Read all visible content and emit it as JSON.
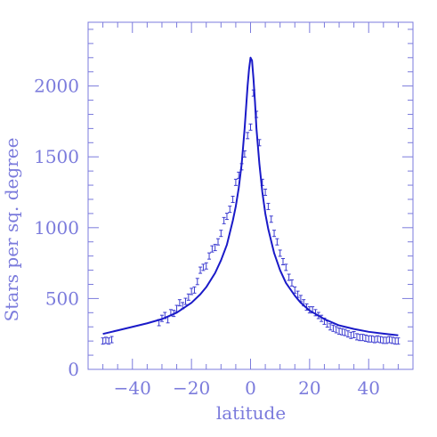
{
  "colors": {
    "axis": "#7b7bdc",
    "data": "#3b3bd0",
    "model": "#1a1ac8",
    "background": "#ffffff"
  },
  "chart_data": {
    "type": "scatter",
    "title": "",
    "xlabel": "latitude",
    "ylabel": "Stars per sq. degree",
    "xlim": [
      -55,
      55
    ],
    "ylim": [
      0,
      2450
    ],
    "x_ticks": [
      -40,
      -20,
      0,
      20,
      40
    ],
    "x_tick_labels": [
      "−40",
      "−20",
      "0",
      "20",
      "40"
    ],
    "y_ticks": [
      0,
      500,
      1000,
      1500,
      2000
    ],
    "y_tick_labels": [
      "0",
      "500",
      "1000",
      "1500",
      "2000"
    ],
    "grid": false,
    "legend": "none",
    "series": [
      {
        "kind": "points-with-error-bars",
        "x": [
          -50,
          -49,
          -48,
          -47,
          -31,
          -30,
          -29,
          -28,
          -27,
          -26,
          -25,
          -24,
          -23,
          -22,
          -21,
          -20,
          -19,
          -18,
          -17,
          -16,
          -15,
          -14,
          -13,
          -12,
          -11,
          -10,
          -9,
          -8,
          -7,
          -6,
          -5,
          -4,
          -3,
          -2,
          -1,
          0,
          1,
          2,
          3,
          4,
          5,
          6,
          7,
          8,
          9,
          10,
          11,
          12,
          13,
          14,
          15,
          16,
          17,
          18,
          19,
          20,
          21,
          22,
          23,
          24,
          25,
          26,
          27,
          28,
          29,
          30,
          31,
          32,
          33,
          34,
          35,
          36,
          37,
          38,
          39,
          40,
          41,
          42,
          43,
          44,
          45,
          46,
          47,
          48,
          49,
          50
        ],
        "y": [
          200,
          205,
          200,
          210,
          330,
          360,
          380,
          350,
          400,
          395,
          430,
          470,
          450,
          480,
          510,
          550,
          560,
          620,
          700,
          720,
          730,
          800,
          850,
          860,
          900,
          960,
          1050,
          1080,
          1130,
          1200,
          1320,
          1370,
          1430,
          1520,
          1650,
          1710,
          1950,
          1800,
          1600,
          1320,
          1250,
          1150,
          1060,
          960,
          900,
          820,
          760,
          720,
          650,
          610,
          560,
          530,
          500,
          470,
          440,
          420,
          420,
          400,
          380,
          360,
          340,
          320,
          300,
          290,
          280,
          270,
          265,
          260,
          250,
          240,
          245,
          230,
          225,
          225,
          220,
          215,
          215,
          210,
          215,
          210,
          205,
          205,
          210,
          205,
          200,
          200
        ],
        "yerr": 22
      },
      {
        "kind": "line",
        "x": [
          -50,
          -45,
          -40,
          -35,
          -30,
          -25,
          -20,
          -17,
          -15,
          -12,
          -10,
          -8,
          -6,
          -5,
          -4,
          -3,
          -2,
          -1.5,
          -1,
          -0.5,
          0,
          0.5,
          1,
          1.5,
          2,
          3,
          4,
          5,
          6,
          8,
          10,
          12,
          15,
          17,
          20,
          25,
          30,
          35,
          40,
          45,
          50
        ],
        "y": [
          250,
          275,
          300,
          325,
          355,
          400,
          470,
          530,
          580,
          680,
          770,
          880,
          1050,
          1150,
          1280,
          1450,
          1700,
          1850,
          2000,
          2120,
          2200,
          2180,
          2050,
          1890,
          1700,
          1450,
          1250,
          1100,
          990,
          820,
          700,
          610,
          520,
          470,
          415,
          355,
          310,
          285,
          265,
          252,
          240
        ]
      }
    ]
  }
}
